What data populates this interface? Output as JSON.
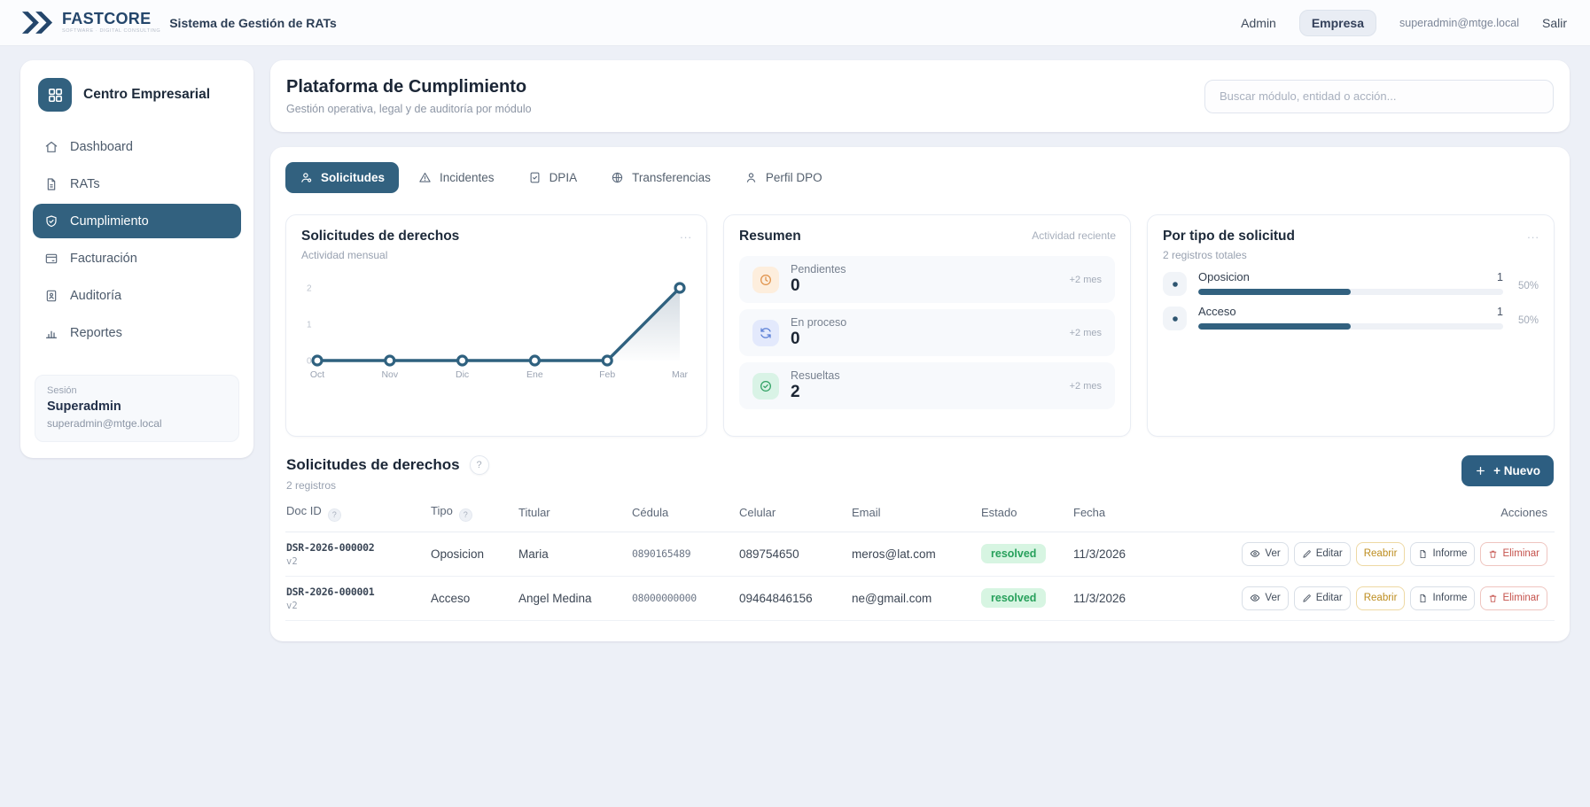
{
  "navbar": {
    "brand": "FASTCORE",
    "brand_tagline": "SOFTWARE · DIGITAL CONSULTING",
    "app_title": "Sistema de Gestión de RATs",
    "admin_link": "Admin",
    "empresa_button": "Empresa",
    "user_email": "superadmin@mtge.local",
    "logout_link": "Salir"
  },
  "sidebar": {
    "title": "Centro Empresarial",
    "items": [
      {
        "label": "Dashboard",
        "icon": "home",
        "active": false
      },
      {
        "label": "RATs",
        "icon": "document",
        "active": false
      },
      {
        "label": "Cumplimiento",
        "icon": "shield-check",
        "active": true
      },
      {
        "label": "Facturación",
        "icon": "billing-card",
        "active": false
      },
      {
        "label": "Auditoría",
        "icon": "audit-doc",
        "active": false
      },
      {
        "label": "Reportes",
        "icon": "bar-chart",
        "active": false
      }
    ],
    "session": {
      "label": "Sesión",
      "user": "Superadmin",
      "email": "superadmin@mtge.local"
    }
  },
  "header": {
    "title": "Plataforma de Cumplimiento",
    "subtitle": "Gestión operativa, legal y de auditoría por módulo",
    "search_placeholder": "Buscar módulo, entidad o acción..."
  },
  "tabs": [
    {
      "label": "Solicitudes",
      "icon": "user-gear",
      "active": true
    },
    {
      "label": "Incidentes",
      "icon": "warning-triangle",
      "active": false
    },
    {
      "label": "DPIA",
      "icon": "clipboard-check",
      "active": false
    },
    {
      "label": "Transferencias",
      "icon": "globe",
      "active": false
    },
    {
      "label": "Perfil DPO",
      "icon": "user",
      "active": false
    }
  ],
  "chart_card": {
    "title": "Solicitudes de derechos",
    "subtitle": "Actividad mensual",
    "menu_dots": "..."
  },
  "chart_data": {
    "type": "line",
    "x": [
      "Oct",
      "Nov",
      "Dic",
      "Ene",
      "Feb",
      "Mar"
    ],
    "values": [
      0,
      0,
      0,
      0,
      0,
      2
    ],
    "title": "Solicitudes de derechos",
    "xlabel": "",
    "ylabel": "",
    "ylim": [
      0,
      2
    ],
    "yticks": [
      0,
      1,
      2
    ],
    "line_color": "#2f617f",
    "grid": false,
    "legend": false
  },
  "summary_card": {
    "title": "Resumen",
    "hint": "Actividad reciente",
    "rows": [
      {
        "label": "Pendientes",
        "value": "0",
        "delta": "+2 mes",
        "icon": "clock"
      },
      {
        "label": "En proceso",
        "value": "0",
        "delta": "+2 mes",
        "icon": "refresh"
      },
      {
        "label": "Resueltas",
        "value": "2",
        "delta": "+2 mes",
        "icon": "check-circle"
      }
    ]
  },
  "type_card": {
    "title": "Por tipo de solicitud",
    "subtitle": "2 registros totales",
    "menu_dots": "...",
    "rows": [
      {
        "label": "Oposicion",
        "count": "1",
        "percent": "50%",
        "bar": 50
      },
      {
        "label": "Acceso",
        "count": "1",
        "percent": "50%",
        "bar": 50
      }
    ]
  },
  "table_section": {
    "title": "Solicitudes de derechos",
    "help": "?",
    "count": "2 registros",
    "new_button": "+ Nuevo",
    "columns": [
      "Doc ID",
      "Tipo",
      "Titular",
      "Cédula",
      "Celular",
      "Email",
      "Estado",
      "Fecha",
      "Acciones"
    ],
    "actions": [
      "Ver",
      "Editar",
      "Reabrir",
      "Informe",
      "Eliminar"
    ],
    "rows": [
      {
        "doc_id": "DSR-2026-000002",
        "version": "v2",
        "tipo": "Oposicion",
        "titular": "Maria",
        "cedula": "0890165489",
        "celular": "089754650",
        "email": "meros@lat.com",
        "estado": "resolved",
        "fecha": "11/3/2026"
      },
      {
        "doc_id": "DSR-2026-000001",
        "version": "v2",
        "tipo": "Acceso",
        "titular": "Angel Medina",
        "cedula": "08000000000",
        "celular": "09464846156",
        "email": "ne@gmail.com",
        "estado": "resolved",
        "fecha": "11/3/2026"
      }
    ]
  }
}
